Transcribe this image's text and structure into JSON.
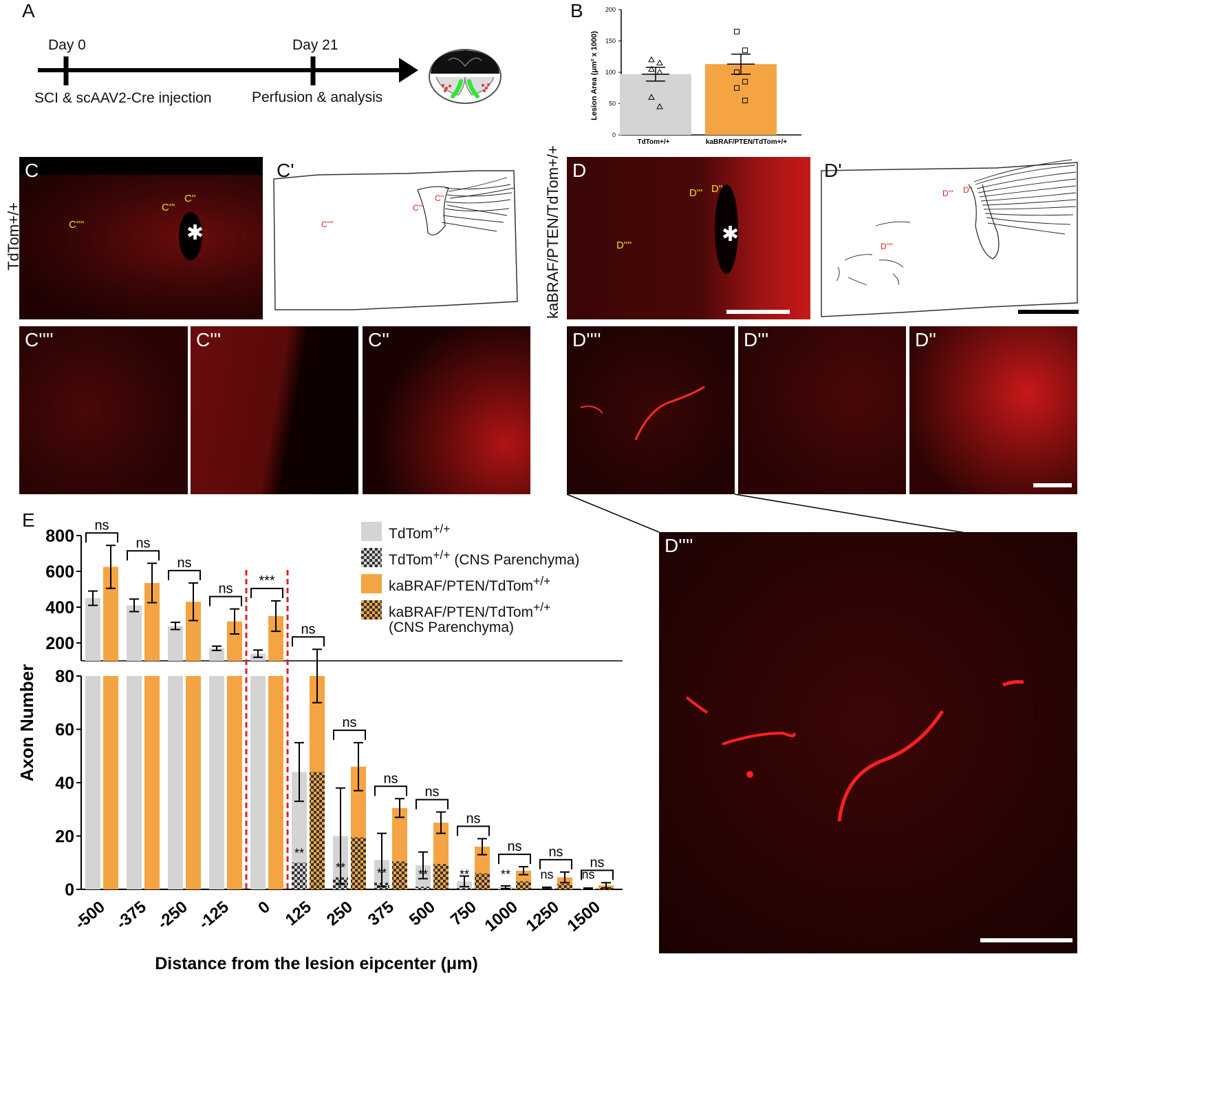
{
  "panelA": {
    "label": "A",
    "day0": "Day 0",
    "day21": "Day 21",
    "event0": "SCI & scAAV2-Cre injection",
    "event21": "Perfusion & analysis"
  },
  "panelB": {
    "label": "B",
    "colors": {
      "control": "#d4d4d4",
      "mutant": "#f5a443"
    },
    "chart_data": {
      "type": "bar",
      "categories": [
        "TdTom+/+",
        "kaBRAF/PTEN/TdTom+/+"
      ],
      "values": [
        97,
        113
      ],
      "errors": [
        11,
        16
      ],
      "points": [
        [
          120,
          115,
          105,
          100,
          60,
          45
        ],
        [
          165,
          135,
          100,
          85,
          75,
          55
        ]
      ],
      "ylabel": "Lesion Area (μm² x 1000)",
      "ylim": [
        0,
        200
      ],
      "yticks": [
        0,
        50,
        100,
        150,
        200
      ]
    }
  },
  "panelC": {
    "label": "C",
    "row_label": "TdTom+/+",
    "tags": [
      "C''",
      "C'''",
      "C''''"
    ],
    "tracing_label": "C'",
    "tiles": [
      "C''''",
      "C'''",
      "C''"
    ]
  },
  "panelD": {
    "label": "D",
    "row_label": "kaBRAF/PTEN/TdTom+/+",
    "tags": [
      "D''",
      "D'''",
      "D''''"
    ],
    "tracing_label": "D'",
    "tiles": [
      "D''''",
      "D'''",
      "D''"
    ],
    "zoom_label": "D''''"
  },
  "panelE": {
    "label": "E",
    "chart_data": {
      "type": "bar",
      "x": [
        "-500",
        "-375",
        "-250",
        "-125",
        "0",
        "125",
        "250",
        "375",
        "500",
        "750",
        "1000",
        "1250",
        "1500"
      ],
      "xlabel": "Distance from the lesion eipcenter (μm)",
      "ylabel": "Axon Number",
      "series": [
        {
          "name": "TdTom+/+",
          "color": "#d4d4d4",
          "values": [
            450,
            410,
            295,
            170,
            140,
            44,
            20,
            11,
            9,
            3,
            0.8,
            0.5,
            0.3
          ],
          "errors": [
            40,
            35,
            20,
            12,
            20,
            11,
            18,
            10,
            5,
            2,
            0.5,
            0.3,
            0.2
          ]
        },
        {
          "name": "TdTom+/+ (CNS Parenchyma)",
          "color": "#d4d4d4",
          "pattern": "checker",
          "values": [
            null,
            null,
            null,
            null,
            null,
            10,
            4.5,
            2.5,
            1,
            0.5,
            0.3,
            0.2,
            0.1
          ]
        },
        {
          "name": "kaBRAF/PTEN/TdTom+/+",
          "color": "#f5a443",
          "values": [
            625,
            535,
            430,
            320,
            350,
            80,
            46,
            30.5,
            25,
            16,
            7,
            4.5,
            1.5
          ],
          "errors": [
            120,
            110,
            105,
            70,
            85,
            10,
            9,
            3.5,
            4,
            3,
            1.5,
            2,
            1
          ]
        },
        {
          "name": "kaBRAF/PTEN/TdTom+/+ (CNS Parenchyma)",
          "color": "#f5a443",
          "pattern": "checker",
          "values": [
            null,
            null,
            null,
            null,
            null,
            44,
            19.5,
            10.5,
            9.5,
            6,
            3,
            2,
            0.5
          ]
        }
      ],
      "sig_pairs": [
        "ns",
        "ns",
        "ns",
        "ns",
        "***",
        "ns",
        "ns",
        "ns",
        "ns",
        "ns",
        "ns",
        "ns",
        "ns"
      ],
      "sig_parenchyma": [
        "",
        "",
        "",
        "",
        "",
        "**",
        "**",
        "**",
        "**",
        "**",
        "**",
        "ns",
        "ns"
      ],
      "y_top": {
        "range": [
          0,
          800
        ],
        "ticks": [
          200,
          400,
          600,
          800
        ]
      },
      "y_bottom": {
        "range": [
          0,
          80
        ],
        "ticks": [
          0,
          20,
          40,
          60,
          80
        ]
      },
      "divider": {
        "color": "#e02020",
        "style": "dashed"
      }
    },
    "legend": [
      "TdTom+/+",
      "TdTom+/+ (CNS Parenchyma)",
      "kaBRAF/PTEN/TdTom+/+",
      "kaBRAF/PTEN/TdTom+/+",
      "(CNS Parenchyma)"
    ]
  }
}
